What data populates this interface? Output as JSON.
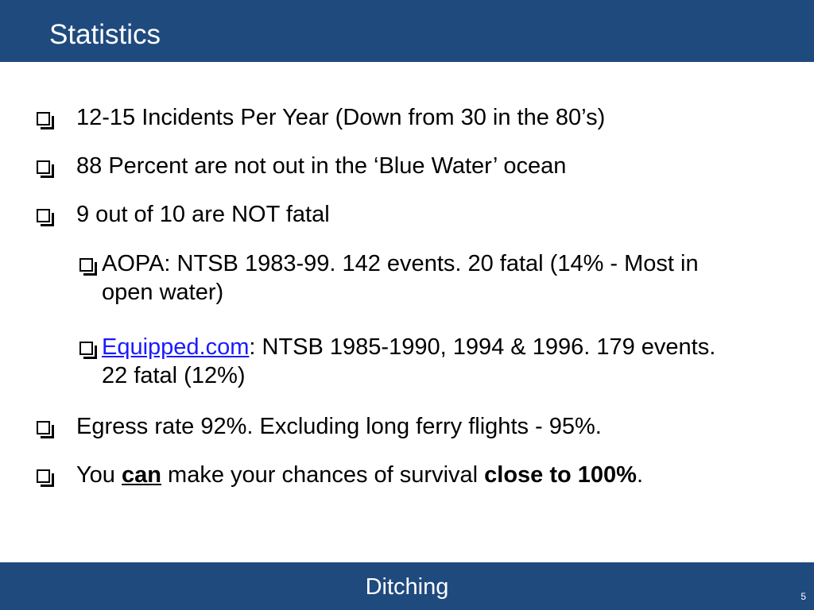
{
  "header": {
    "title": "Statistics"
  },
  "bullets": [
    {
      "level": 1,
      "text": "12-15 Incidents Per Year (Down from 30 in the 80’s)"
    },
    {
      "level": 1,
      "text": "88 Percent are not out in the ‘Blue Water’ ocean"
    },
    {
      "level": 1,
      "text": "9 out of 10 are NOT fatal"
    },
    {
      "level": 2,
      "text": "AOPA: NTSB 1983-99. 142 events. 20 fatal (14% - Most in open water)"
    },
    {
      "level": 2,
      "link": "Equipped.com",
      "text": ": NTSB 1985-1990, 1994 & 1996. 179 events. 22 fatal (12%)"
    },
    {
      "level": 1,
      "text": "Egress rate 92%. Excluding long ferry flights - 95%."
    },
    {
      "level": 1,
      "prefix": "You ",
      "emph": "can",
      "middle": " make your chances of survival ",
      "strong": "close to 100%",
      "suffix": "."
    }
  ],
  "footer": {
    "title": "Ditching",
    "page_number": "5"
  },
  "colors": {
    "header_bar": "#1f4a7e",
    "footer_bar": "#1f4a7e",
    "link": "#1a1aff"
  },
  "icons": {
    "bullet": "checkbox-bullet-icon"
  }
}
